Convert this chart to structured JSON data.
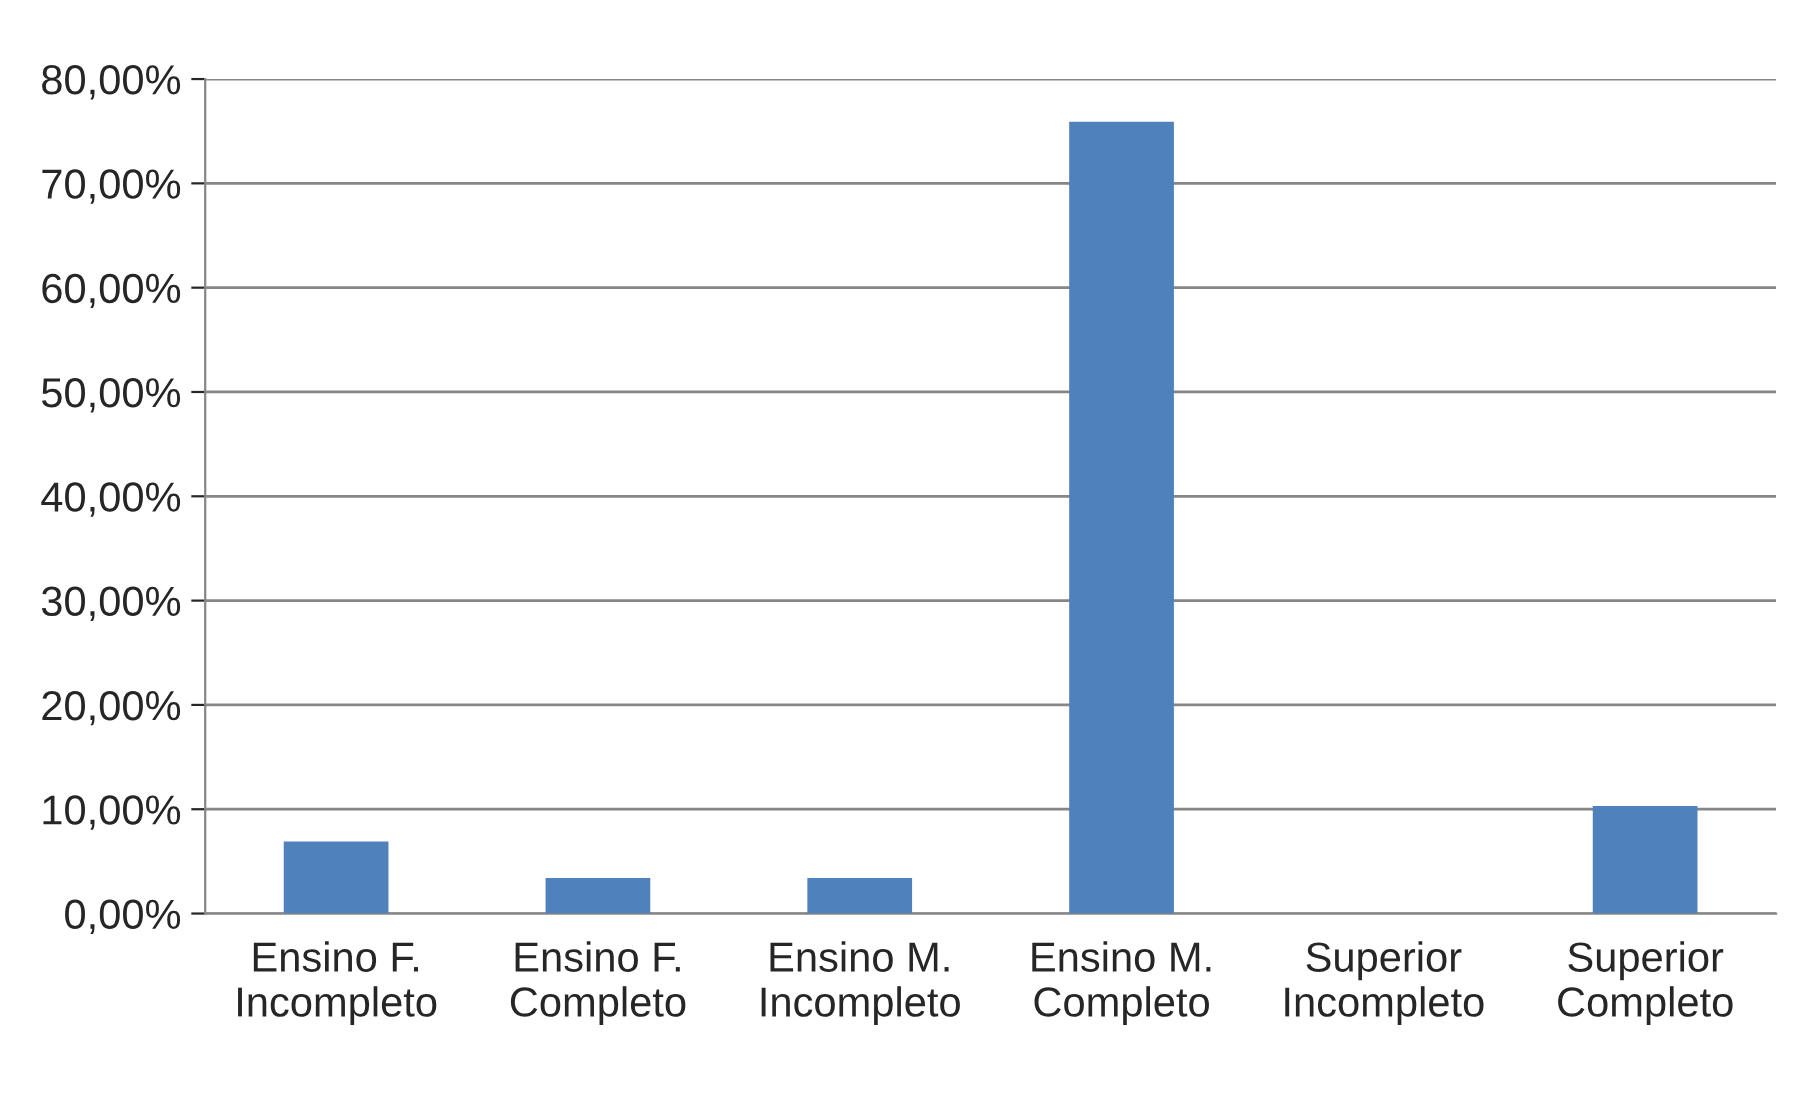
{
  "chart_data": {
    "type": "bar",
    "categories": [
      "Ensino F.\nIncompleto",
      "Ensino F.\nCompleto",
      "Ensino M.\nIncompleto",
      "Ensino M.\nCompleto",
      "Superior\nIncompleto",
      "Superior\nCompleto"
    ],
    "values": [
      6.9,
      3.4,
      3.4,
      75.9,
      0,
      10.3
    ],
    "color": "#4f81bd",
    "ylim": [
      0,
      80
    ],
    "yticks": [
      {
        "value": 0,
        "label": "0,00%"
      },
      {
        "value": 10,
        "label": "10,00%"
      },
      {
        "value": 20,
        "label": "20,00%"
      },
      {
        "value": 30,
        "label": "30,00%"
      },
      {
        "value": 40,
        "label": "40,00%"
      },
      {
        "value": 50,
        "label": "50,00%"
      },
      {
        "value": 60,
        "label": "60,00%"
      },
      {
        "value": 70,
        "label": "70,00%"
      },
      {
        "value": 80,
        "label": "80,00%"
      }
    ],
    "grid": "y",
    "legend": false
  }
}
